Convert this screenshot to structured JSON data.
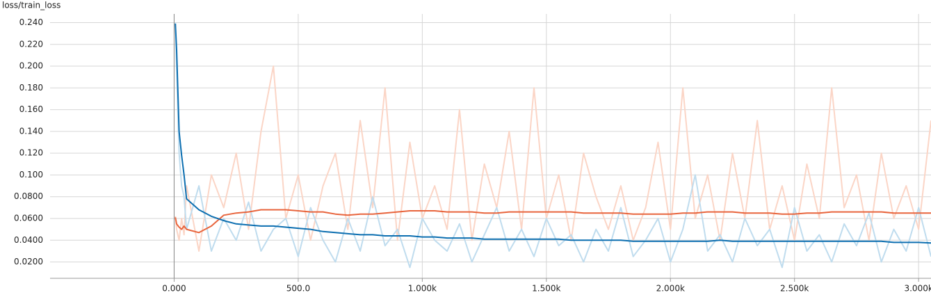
{
  "chart_data": {
    "type": "line",
    "title": "loss/train_loss",
    "x": [
      5,
      10,
      20,
      30,
      40,
      50,
      100,
      150,
      200,
      250,
      300,
      350,
      400,
      450,
      500,
      550,
      600,
      650,
      700,
      750,
      800,
      850,
      900,
      950,
      1000,
      1050,
      1100,
      1150,
      1200,
      1250,
      1300,
      1350,
      1400,
      1450,
      1500,
      1550,
      1600,
      1650,
      1700,
      1750,
      1800,
      1850,
      1900,
      1950,
      2000,
      2050,
      2100,
      2150,
      2200,
      2250,
      2300,
      2350,
      2400,
      2450,
      2500,
      2550,
      2600,
      2650,
      2700,
      2750,
      2800,
      2850,
      2900,
      2950,
      3000,
      3050
    ],
    "series": [
      {
        "color": "#fbd5c6",
        "values": [
          0.062,
          0.05,
          0.04,
          0.06,
          0.045,
          0.09,
          0.03,
          0.1,
          0.07,
          0.12,
          0.05,
          0.14,
          0.2,
          0.06,
          0.1,
          0.04,
          0.09,
          0.12,
          0.05,
          0.15,
          0.07,
          0.18,
          0.04,
          0.13,
          0.06,
          0.09,
          0.05,
          0.16,
          0.04,
          0.11,
          0.07,
          0.14,
          0.05,
          0.18,
          0.06,
          0.1,
          0.04,
          0.12,
          0.08,
          0.05,
          0.09,
          0.04,
          0.07,
          0.13,
          0.05,
          0.18,
          0.06,
          0.1,
          0.04,
          0.12,
          0.06,
          0.15,
          0.05,
          0.09,
          0.04,
          0.11,
          0.06,
          0.18,
          0.07,
          0.1,
          0.04,
          0.12,
          0.06,
          0.09,
          0.05,
          0.15
        ]
      },
      {
        "color": "#bfdcee",
        "values": [
          0.24,
          0.2,
          0.12,
          0.09,
          0.08,
          0.05,
          0.09,
          0.03,
          0.06,
          0.04,
          0.075,
          0.03,
          0.05,
          0.06,
          0.025,
          0.07,
          0.04,
          0.02,
          0.06,
          0.03,
          0.08,
          0.035,
          0.05,
          0.015,
          0.06,
          0.04,
          0.03,
          0.055,
          0.02,
          0.045,
          0.07,
          0.03,
          0.05,
          0.025,
          0.06,
          0.035,
          0.045,
          0.02,
          0.05,
          0.03,
          0.07,
          0.025,
          0.04,
          0.06,
          0.02,
          0.05,
          0.1,
          0.03,
          0.045,
          0.02,
          0.06,
          0.035,
          0.05,
          0.015,
          0.07,
          0.03,
          0.045,
          0.02,
          0.055,
          0.035,
          0.065,
          0.02,
          0.05,
          0.03,
          0.07,
          0.025
        ]
      },
      {
        "color": "#e8643c",
        "values": [
          0.061,
          0.055,
          0.052,
          0.05,
          0.053,
          0.05,
          0.047,
          0.053,
          0.063,
          0.065,
          0.066,
          0.068,
          0.068,
          0.068,
          0.067,
          0.066,
          0.066,
          0.064,
          0.063,
          0.064,
          0.064,
          0.065,
          0.066,
          0.067,
          0.067,
          0.067,
          0.066,
          0.066,
          0.066,
          0.065,
          0.065,
          0.066,
          0.066,
          0.066,
          0.066,
          0.066,
          0.066,
          0.065,
          0.065,
          0.065,
          0.065,
          0.064,
          0.064,
          0.064,
          0.064,
          0.065,
          0.065,
          0.066,
          0.066,
          0.066,
          0.065,
          0.065,
          0.065,
          0.064,
          0.064,
          0.065,
          0.065,
          0.066,
          0.066,
          0.066,
          0.066,
          0.066,
          0.065,
          0.065,
          0.065,
          0.065
        ]
      },
      {
        "color": "#0b6eb0",
        "values": [
          0.239,
          0.215,
          0.14,
          0.118,
          0.1,
          0.078,
          0.068,
          0.062,
          0.058,
          0.055,
          0.054,
          0.053,
          0.053,
          0.052,
          0.051,
          0.05,
          0.048,
          0.047,
          0.046,
          0.045,
          0.045,
          0.044,
          0.044,
          0.044,
          0.043,
          0.043,
          0.042,
          0.042,
          0.042,
          0.041,
          0.041,
          0.041,
          0.041,
          0.041,
          0.041,
          0.041,
          0.04,
          0.04,
          0.04,
          0.04,
          0.04,
          0.039,
          0.039,
          0.039,
          0.039,
          0.039,
          0.039,
          0.039,
          0.04,
          0.039,
          0.039,
          0.039,
          0.039,
          0.039,
          0.039,
          0.039,
          0.039,
          0.039,
          0.039,
          0.039,
          0.039,
          0.039,
          0.038,
          0.038,
          0.038,
          0.0375
        ]
      }
    ],
    "xlim": [
      -500,
      3050
    ],
    "ylim": [
      0.005,
      0.248
    ],
    "xticks": [
      {
        "value": 0,
        "label": "0.000"
      },
      {
        "value": 500,
        "label": "500.0"
      },
      {
        "value": 1000,
        "label": "1.000k"
      },
      {
        "value": 1500,
        "label": "1.500k"
      },
      {
        "value": 2000,
        "label": "2.000k"
      },
      {
        "value": 2500,
        "label": "2.500k"
      },
      {
        "value": 3000,
        "label": "3.000k"
      }
    ],
    "yticks": [
      {
        "value": 0.02,
        "label": "0.0200"
      },
      {
        "value": 0.04,
        "label": "0.0400"
      },
      {
        "value": 0.06,
        "label": "0.0600"
      },
      {
        "value": 0.08,
        "label": "0.0800"
      },
      {
        "value": 0.1,
        "label": "0.100"
      },
      {
        "value": 0.12,
        "label": "0.120"
      },
      {
        "value": 0.14,
        "label": "0.140"
      },
      {
        "value": 0.16,
        "label": "0.160"
      },
      {
        "value": 0.18,
        "label": "0.180"
      },
      {
        "value": 0.2,
        "label": "0.200"
      },
      {
        "value": 0.22,
        "label": "0.220"
      },
      {
        "value": 0.24,
        "label": "0.240"
      }
    ],
    "grid": true
  }
}
